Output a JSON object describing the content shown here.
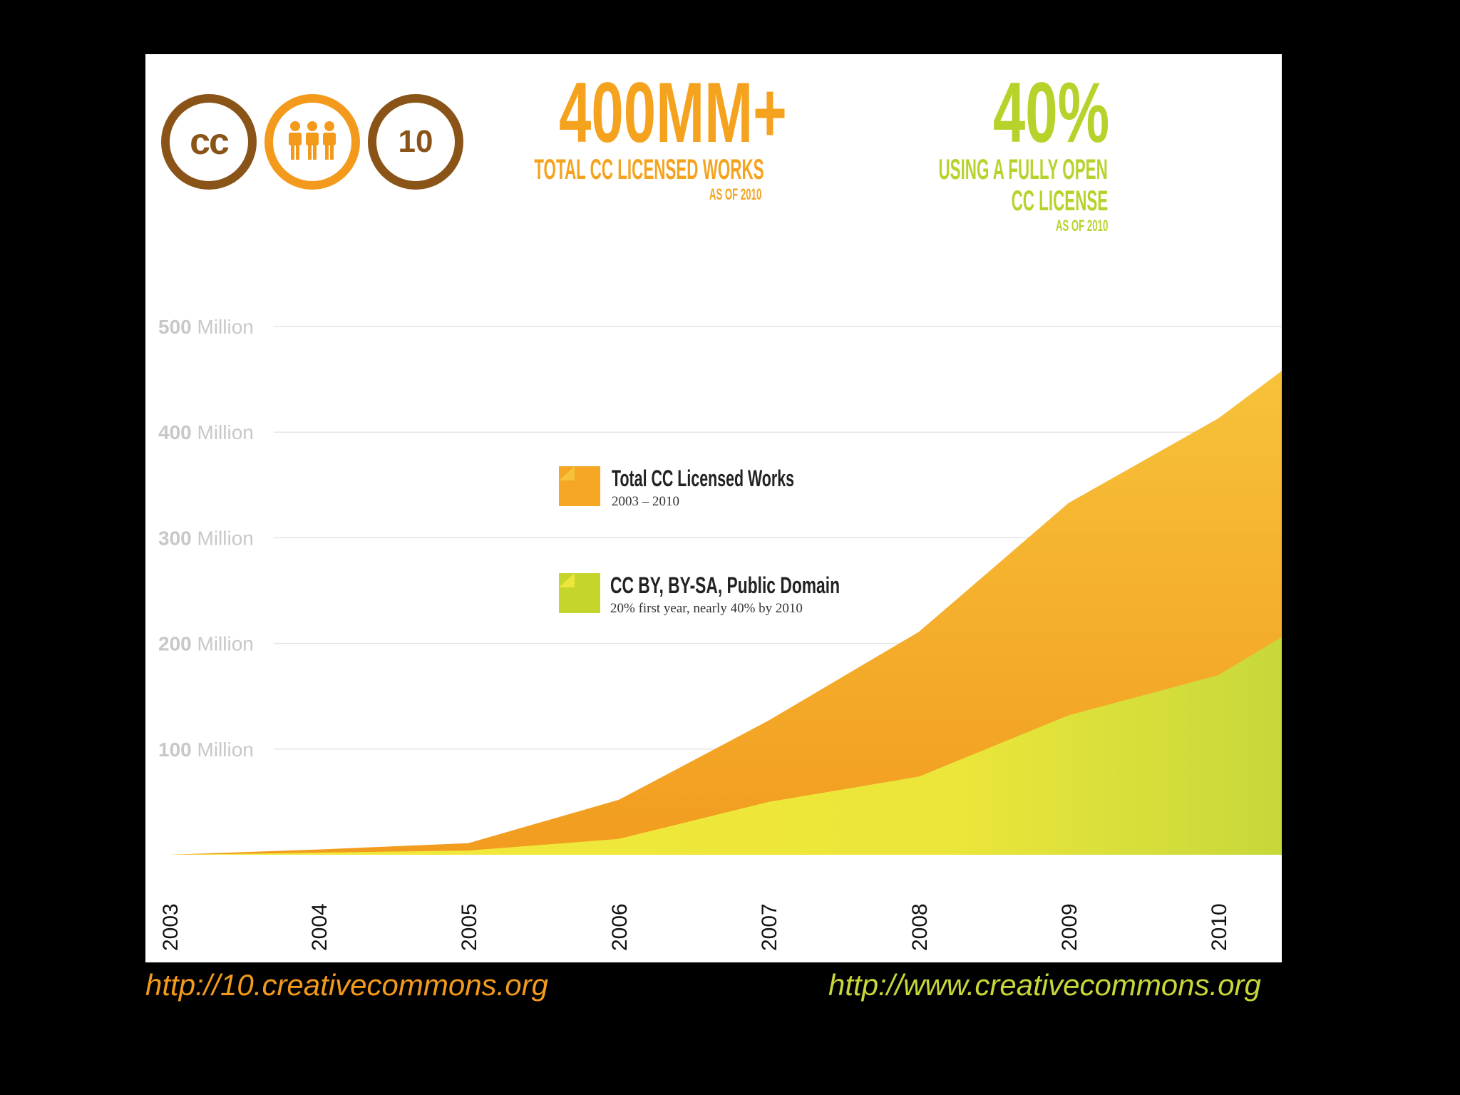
{
  "logos": [
    {
      "name": "cc-logo",
      "text": "cc"
    },
    {
      "name": "people-logo",
      "icon": "people-icon"
    },
    {
      "name": "ten-logo",
      "text": "10"
    }
  ],
  "stats": {
    "total": {
      "number": "400MM+",
      "line1": "TOTAL CC LICENSED WORKS",
      "line2": "AS OF 2010",
      "color": "#f5a31f"
    },
    "open": {
      "number": "40%",
      "line1": "USING A FULLY OPEN",
      "line2": "CC LICENSE",
      "line3": "AS OF 2010",
      "color": "#b8d22c"
    }
  },
  "chart_data": {
    "type": "area",
    "x": [
      "2003",
      "2004",
      "2005",
      "2006",
      "2007",
      "2008",
      "2009",
      "2010"
    ],
    "ylim": [
      0,
      500
    ],
    "y_unit": "Million",
    "y_ticks": [
      100,
      200,
      300,
      400,
      500
    ],
    "y_tick_labels": [
      "100 Million",
      "200 Million",
      "300 Million",
      "400 Million",
      "500 Million"
    ],
    "series": [
      {
        "name": "Total CC Licensed Works",
        "subtitle": "2003 – 2010",
        "values": [
          0,
          5,
          11,
          52,
          127,
          211,
          333,
          413
        ],
        "end_value": 458,
        "color": "#f5a623"
      },
      {
        "name": "CC BY, BY-SA, Public Domain",
        "subtitle": "20% first year, nearly 40% by 2010",
        "values": [
          0,
          2,
          4,
          15,
          50,
          74,
          132,
          170
        ],
        "end_value": 206,
        "color": "#e8e23a"
      }
    ]
  },
  "footer": {
    "left_url": "http://10.creativecommons.org",
    "right_url": "http://www.creativecommons.org",
    "left_color": "#f39a1c",
    "right_color": "#c8d63a"
  }
}
